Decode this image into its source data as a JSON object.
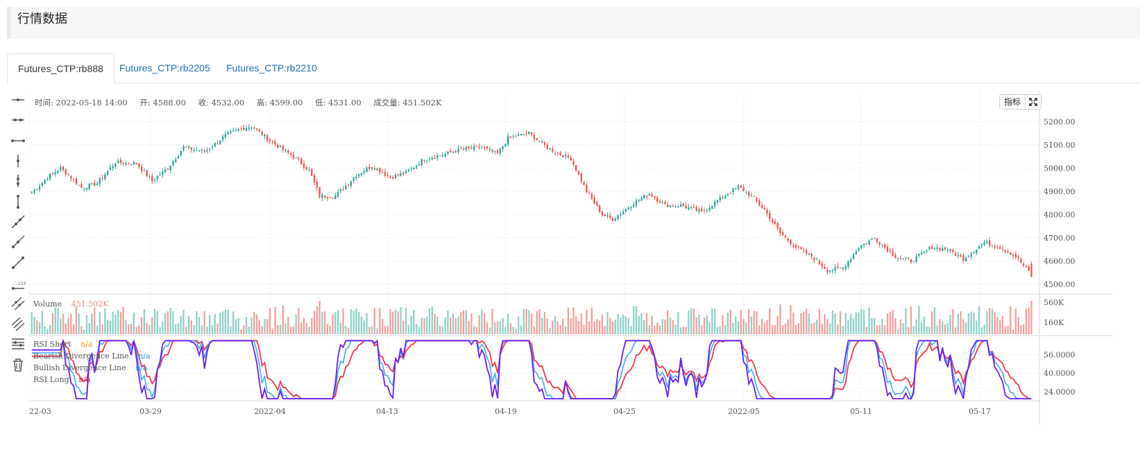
{
  "page": {
    "title": "行情数据"
  },
  "tabs": [
    {
      "label": "Futures_CTP:rb888",
      "active": true
    },
    {
      "label": "Futures_CTP:rb2205",
      "active": false
    },
    {
      "label": "Futures_CTP:rb2210",
      "active": false
    }
  ],
  "toolbar": {
    "icons": [
      "horizontal-line-icon",
      "horizontal-ray-icon",
      "horizontal-segment-icon",
      "vertical-line-icon",
      "vertical-ray-icon",
      "vertical-segment-icon",
      "trend-line-icon",
      "trend-ray-icon",
      "trend-segment-icon",
      "price-line-icon",
      "parallel-channel-icon",
      "multi-parallel-icon",
      "fibonacci-icon",
      "delete-icon"
    ]
  },
  "ohlc": {
    "time": "时间: 2022-05-18 14:00",
    "open": "开: 4588.00",
    "close": "收: 4532.00",
    "high": "高: 4599.00",
    "low": "低: 4531.00",
    "volume": "成交量: 451.502K"
  },
  "buttons": {
    "indicator": "指标"
  },
  "volume_legend": {
    "name": "Volume",
    "value": "451.502K"
  },
  "rsi_legend": [
    {
      "name": "RSI Short",
      "value": "n/a",
      "color": "#ff9800"
    },
    {
      "name": "Bearish Divergence Line",
      "value": "n/a",
      "color": "#2196f3"
    },
    {
      "name": "Bullish Divergence Line",
      "value": "n/a",
      "color": "#2196f3"
    },
    {
      "name": "RSI Long",
      "value": "n/a",
      "color": "#e91e63"
    }
  ],
  "colors": {
    "up": "#26a69a",
    "down": "#ef5350",
    "rsi_short": "#6a1cf6",
    "rsi_mid": "#3fa9f5",
    "rsi_long": "#f23645",
    "link": "#1d6fb8"
  },
  "chart_data": {
    "type": "candlestick",
    "price_axis": {
      "ticks": [
        "5200.00",
        "5100.00",
        "5000.00",
        "4900.00",
        "4800.00",
        "4700.00",
        "4600.00",
        "4500.00"
      ],
      "range": [
        4470,
        5240
      ]
    },
    "volume_axis": {
      "ticks": [
        "560K",
        "160K"
      ]
    },
    "rsi_axis": {
      "ticks": [
        "56.0000",
        "40.0000",
        "24.0000"
      ],
      "range": [
        15,
        70
      ]
    },
    "time_axis": {
      "labels": [
        "22-03",
        "03-29",
        "2022-04",
        "04-13",
        "04-19",
        "04-25",
        "2022-05",
        "05-11",
        "05-17"
      ]
    },
    "close_keypoints": [
      [
        0,
        4895
      ],
      [
        6,
        4960
      ],
      [
        11,
        5000
      ],
      [
        15,
        4960
      ],
      [
        19,
        4915
      ],
      [
        25,
        4935
      ],
      [
        32,
        5025
      ],
      [
        40,
        5020
      ],
      [
        46,
        4945
      ],
      [
        52,
        5000
      ],
      [
        58,
        5090
      ],
      [
        66,
        5070
      ],
      [
        74,
        5140
      ],
      [
        80,
        5170
      ],
      [
        84,
        5180
      ],
      [
        92,
        5110
      ],
      [
        100,
        5050
      ],
      [
        106,
        4990
      ],
      [
        110,
        4880
      ],
      [
        116,
        4880
      ],
      [
        124,
        4970
      ],
      [
        130,
        5010
      ],
      [
        137,
        4960
      ],
      [
        143,
        4980
      ],
      [
        150,
        5040
      ],
      [
        158,
        5060
      ],
      [
        164,
        5080
      ],
      [
        172,
        5090
      ],
      [
        178,
        5060
      ],
      [
        182,
        5130
      ],
      [
        190,
        5150
      ],
      [
        198,
        5080
      ],
      [
        206,
        5040
      ],
      [
        212,
        4900
      ],
      [
        218,
        4800
      ],
      [
        222,
        4780
      ],
      [
        230,
        4850
      ],
      [
        236,
        4890
      ],
      [
        242,
        4840
      ],
      [
        248,
        4840
      ],
      [
        256,
        4810
      ],
      [
        262,
        4860
      ],
      [
        270,
        4920
      ],
      [
        275,
        4880
      ],
      [
        280,
        4820
      ],
      [
        286,
        4720
      ],
      [
        292,
        4660
      ],
      [
        298,
        4620
      ],
      [
        304,
        4560
      ],
      [
        310,
        4570
      ],
      [
        316,
        4660
      ],
      [
        322,
        4700
      ],
      [
        330,
        4620
      ],
      [
        336,
        4600
      ],
      [
        344,
        4660
      ],
      [
        350,
        4650
      ],
      [
        356,
        4610
      ],
      [
        364,
        4680
      ],
      [
        370,
        4660
      ],
      [
        376,
        4620
      ],
      [
        382,
        4540
      ]
    ],
    "last_bar": {
      "time": "2022-05-18 14:00",
      "open": 4588.0,
      "close": 4532.0,
      "high": 4599.0,
      "low": 4531.0,
      "volume": "451.502K"
    }
  }
}
